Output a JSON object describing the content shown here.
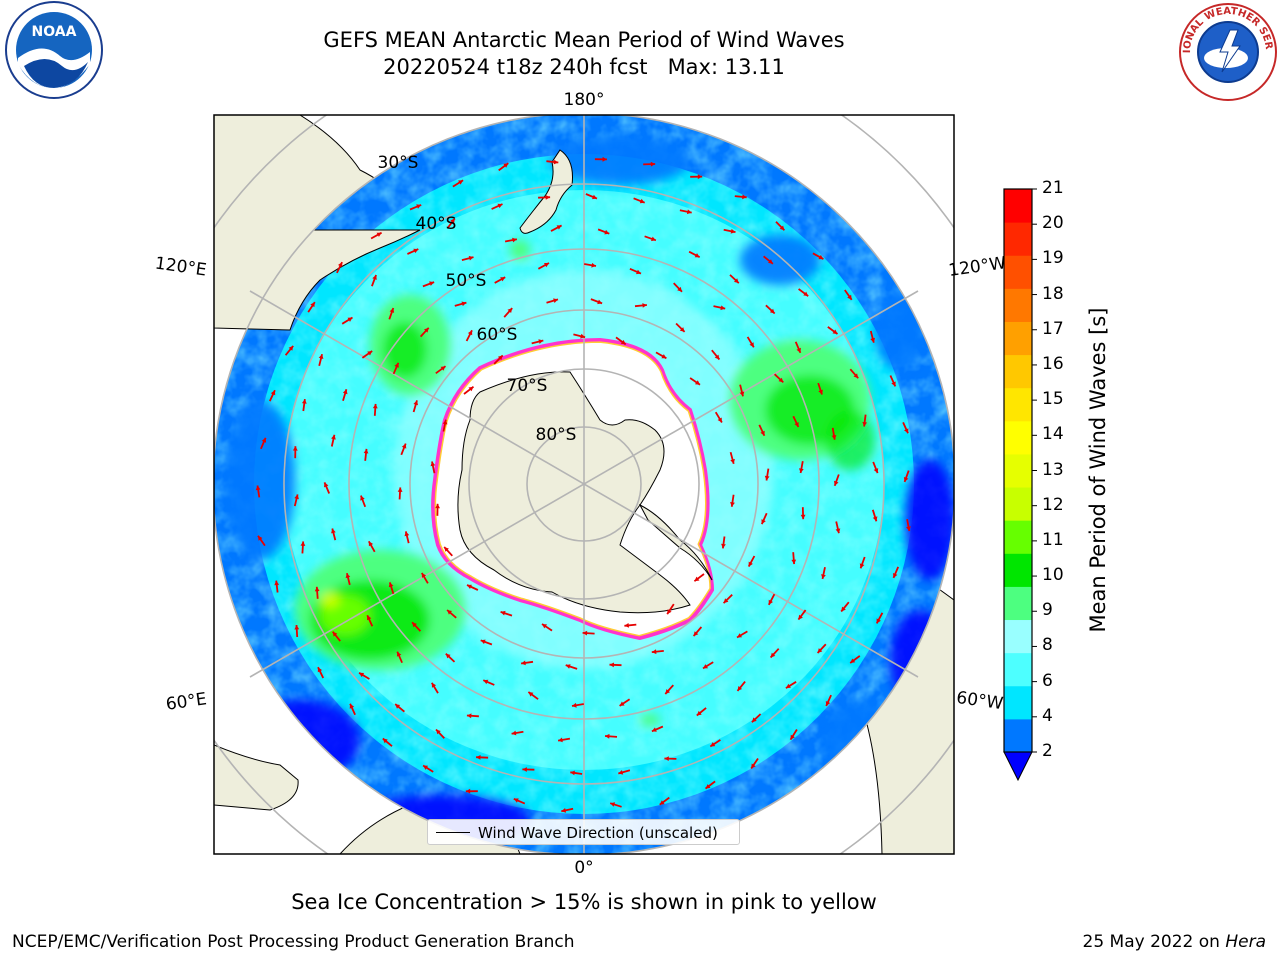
{
  "title": {
    "line1": "GEFS MEAN Antarctic Mean Period of Wind Waves",
    "line2": "20220524 t18z 240h fcst   Max: 13.11"
  },
  "map": {
    "projection": "south-polar-stereographic",
    "longitude_labels": [
      {
        "text": "180°"
      },
      {
        "text": "120°E"
      },
      {
        "text": "120°W"
      },
      {
        "text": "60°E"
      },
      {
        "text": "60°W"
      },
      {
        "text": "0°"
      }
    ],
    "latitude_labels": [
      "30°S",
      "40°S",
      "50°S",
      "60°S",
      "70°S",
      "80°S"
    ],
    "colors": {
      "land": "#eeeedc",
      "ice": "#ffffff",
      "ice_edge": "#ff33cc",
      "ice_edge_inner": "#ffcc33",
      "arrow": "#e60000",
      "grid": "#b4b4b4"
    }
  },
  "colorbar": {
    "title": "Mean Period of Wind Waves [s]",
    "levels": [
      2,
      4,
      6,
      8,
      9,
      10,
      11,
      12,
      13,
      14,
      15,
      16,
      17,
      18,
      19,
      20,
      21
    ],
    "colors": [
      "#0078ff",
      "#00e6ff",
      "#4dffff",
      "#99ffff",
      "#4dff80",
      "#00e600",
      "#66ff00",
      "#c8ff00",
      "#e6ff00",
      "#ffff00",
      "#ffe600",
      "#ffc800",
      "#ffa000",
      "#ff7800",
      "#ff5000",
      "#ff2800",
      "#ff0000"
    ],
    "extend_color": "#0000ff"
  },
  "legend": {
    "label": "Wind Wave Direction (unscaled)"
  },
  "caption": "Sea Ice Concentration > 15% is shown in pink to yellow",
  "footer": {
    "left": "NCEP/EMC/Verification Post Processing Product Generation Branch",
    "right_date": "25 May 2022 on ",
    "right_host": "Hera"
  },
  "logos": {
    "left": "NOAA",
    "right": "NATIONAL WEATHER SERVICE"
  }
}
